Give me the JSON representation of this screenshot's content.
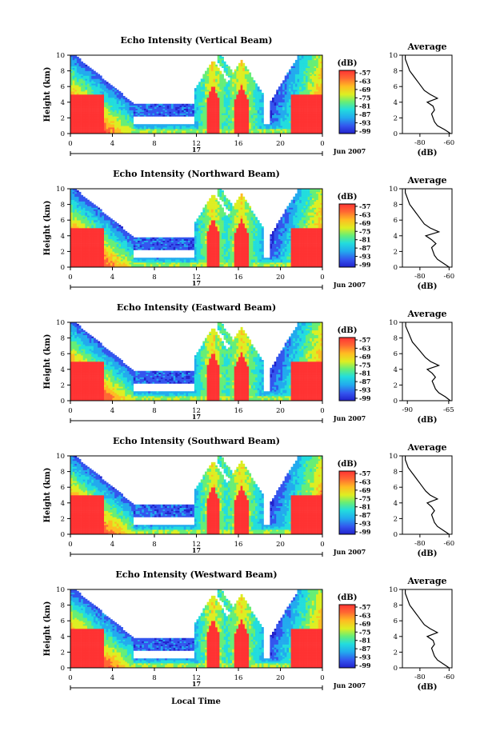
{
  "units_label": "(dB)",
  "colorbar_ticks": [
    "-57",
    "-63",
    "-69",
    "-75",
    "-81",
    "-87",
    "-93",
    "-99"
  ],
  "hour_ticks": [
    "0",
    "4",
    "8",
    "12",
    "16",
    "20",
    "0"
  ],
  "day_label": "17",
  "date_label": "Jun 2007",
  "xlabel_bottom": "Local Time",
  "chart_data": [
    {
      "type": "heatmap",
      "title": "Echo Intensity (Vertical Beam)",
      "ylabel": "Height (km)",
      "xlim": [
        0,
        24
      ],
      "ylim": [
        0,
        10
      ],
      "yticks": [
        0,
        2,
        4,
        6,
        8,
        10
      ],
      "color_range_db": [
        -99,
        -57
      ],
      "profile": {
        "title": "Average",
        "xlabel": "(dB)",
        "xticks": [
          "-80",
          "-60"
        ],
        "xlim": [
          -92,
          -58
        ],
        "heights": [
          0,
          0.5,
          1,
          1.5,
          2,
          2.5,
          3,
          3.5,
          4,
          4.5,
          5,
          5.5,
          6,
          6.5,
          7,
          7.5,
          8,
          8.5,
          9,
          9.5,
          10
        ],
        "values": [
          -59,
          -63,
          -68,
          -70,
          -71,
          -72,
          -70,
          -71,
          -75,
          -68,
          -73,
          -77,
          -79,
          -81,
          -83,
          -85,
          -87,
          -88,
          -89,
          -90,
          -90
        ]
      }
    },
    {
      "type": "heatmap",
      "title": "Echo Intensity (Northward Beam)",
      "ylabel": "Height (km)",
      "xlim": [
        0,
        24
      ],
      "ylim": [
        0,
        10
      ],
      "yticks": [
        0,
        2,
        4,
        6,
        8,
        10
      ],
      "color_range_db": [
        -99,
        -57
      ],
      "profile": {
        "title": "Average",
        "xlabel": "(dB)",
        "xticks": [
          "-80",
          "-60"
        ],
        "xlim": [
          -92,
          -58
        ],
        "heights": [
          0,
          0.5,
          1,
          1.5,
          2,
          2.5,
          3,
          3.5,
          4,
          4.5,
          5,
          5.5,
          6,
          6.5,
          7,
          7.5,
          8,
          8.5,
          9,
          9.5,
          10
        ],
        "values": [
          -60,
          -64,
          -68,
          -70,
          -71,
          -72,
          -69,
          -72,
          -76,
          -67,
          -73,
          -77,
          -79,
          -81,
          -83,
          -85,
          -87,
          -88,
          -89,
          -90,
          -90
        ]
      }
    },
    {
      "type": "heatmap",
      "title": "Echo Intensity (Eastward Beam)",
      "ylabel": "Height (km)",
      "xlim": [
        0,
        24
      ],
      "ylim": [
        0,
        10
      ],
      "yticks": [
        0,
        2,
        4,
        6,
        8,
        10
      ],
      "color_range_db": [
        -99,
        -57
      ],
      "profile": {
        "title": "Average",
        "xlabel": "(dB)",
        "xticks": [
          "-90",
          "-65"
        ],
        "xlim": [
          -93,
          -63
        ],
        "heights": [
          0,
          0.5,
          1,
          1.5,
          2,
          2.5,
          3,
          3.5,
          4,
          4.5,
          5,
          5.5,
          6,
          6.5,
          7,
          7.5,
          8,
          8.5,
          9,
          9.5,
          10
        ],
        "values": [
          -64,
          -67,
          -71,
          -73,
          -74,
          -75,
          -73,
          -75,
          -78,
          -71,
          -76,
          -79,
          -81,
          -83,
          -85,
          -87,
          -88,
          -89,
          -90,
          -91,
          -91
        ]
      }
    },
    {
      "type": "heatmap",
      "title": "Echo Intensity (Southward Beam)",
      "ylabel": "Height (km)",
      "xlim": [
        0,
        24
      ],
      "ylim": [
        0,
        10
      ],
      "yticks": [
        0,
        2,
        4,
        6,
        8,
        10
      ],
      "color_range_db": [
        -99,
        -57
      ],
      "profile": {
        "title": "Average",
        "xlabel": "(dB)",
        "xticks": [
          "-80",
          "-60"
        ],
        "xlim": [
          -92,
          -58
        ],
        "heights": [
          0,
          0.5,
          1,
          1.5,
          2,
          2.5,
          3,
          3.5,
          4,
          4.5,
          5,
          5.5,
          6,
          6.5,
          7,
          7.5,
          8,
          8.5,
          9,
          9.5,
          10
        ],
        "values": [
          -60,
          -64,
          -68,
          -70,
          -71,
          -72,
          -70,
          -72,
          -75,
          -68,
          -73,
          -76,
          -78,
          -80,
          -82,
          -84,
          -86,
          -88,
          -89,
          -90,
          -90
        ]
      }
    },
    {
      "type": "heatmap",
      "title": "Echo Intensity (Westward Beam)",
      "ylabel": "Height (km)",
      "xlim": [
        0,
        24
      ],
      "ylim": [
        0,
        10
      ],
      "yticks": [
        0,
        2,
        4,
        6,
        8,
        10
      ],
      "color_range_db": [
        -99,
        -57
      ],
      "profile": {
        "title": "Average",
        "xlabel": "(dB)",
        "xticks": [
          "-80",
          "-60"
        ],
        "xlim": [
          -92,
          -58
        ],
        "heights": [
          0,
          0.5,
          1,
          1.5,
          2,
          2.5,
          3,
          3.5,
          4,
          4.5,
          5,
          5.5,
          6,
          6.5,
          7,
          7.5,
          8,
          8.5,
          9,
          9.5,
          10
        ],
        "values": [
          -60,
          -64,
          -68,
          -70,
          -71,
          -72,
          -70,
          -71,
          -75,
          -68,
          -73,
          -77,
          -79,
          -81,
          -83,
          -85,
          -87,
          -88,
          -89,
          -90,
          -90
        ]
      }
    }
  ]
}
